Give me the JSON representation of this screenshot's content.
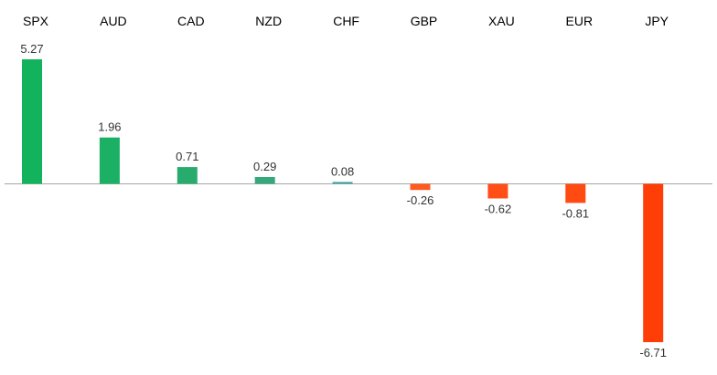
{
  "chart_data": {
    "type": "bar",
    "categories": [
      "SPX",
      "AUD",
      "CAD",
      "NZD",
      "CHF",
      "GBP",
      "XAU",
      "EUR",
      "JPY"
    ],
    "values": [
      5.27,
      1.96,
      0.71,
      0.29,
      0.08,
      -0.26,
      -0.62,
      -0.81,
      -6.71
    ],
    "data_labels": [
      "5.27",
      "1.96",
      "0.71",
      "0.29",
      "0.08",
      "-0.26",
      "-0.62",
      "-0.81",
      "-6.71"
    ],
    "title": "",
    "xlabel": "",
    "ylabel": "",
    "ylim": [
      -6.71,
      5.27
    ],
    "grid": false,
    "legend": "none",
    "category_axis_position": "top",
    "bar_colors": [
      "#13b35d",
      "#1bb064",
      "#27ac6e",
      "#35a87b",
      "#45a3a5",
      "#ff5a1f",
      "#ff4f17",
      "#ff4a12",
      "#ff3d06"
    ],
    "baseline_color": "#a6a6a6"
  }
}
